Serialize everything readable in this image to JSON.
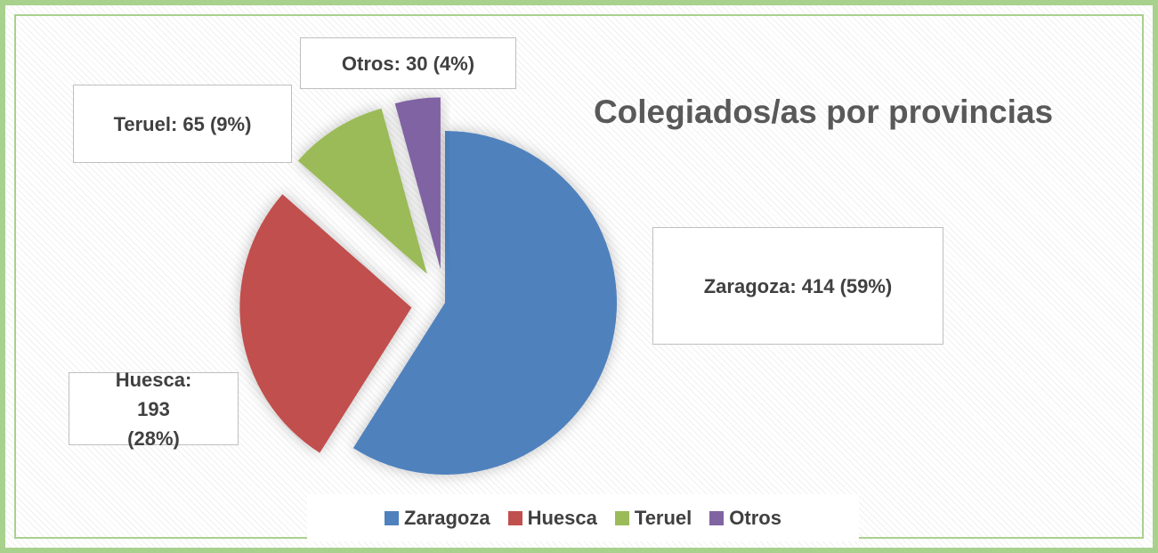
{
  "chart_data": {
    "type": "pie",
    "title": "Colegiados/as por provincias",
    "categories": [
      "Zaragoza",
      "Huesca",
      "Teruel",
      "Otros"
    ],
    "values": [
      414,
      193,
      65,
      30
    ],
    "value_labels": [
      "Zaragoza:  414 (59%)",
      "Huesca: 193 (28%)",
      "Teruel: 65 (9%)",
      "Otros: 30 (4%)"
    ],
    "colors": [
      "#4f81bd",
      "#c0504d",
      "#9bbb59",
      "#8064a2"
    ],
    "legend": "bottom"
  }
}
